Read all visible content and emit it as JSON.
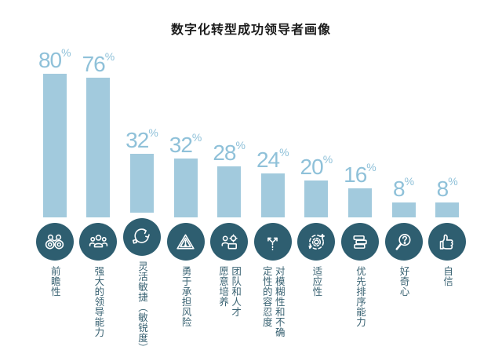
{
  "title": "数字化转型成功领导者画像",
  "colors": {
    "background": "#ffffff",
    "title_text": "#1c1c1c",
    "bar": "#a2cadd",
    "value_label": "#8fc1d9",
    "circle": "#2e5e70",
    "icon": "#ffffff",
    "category_label": "#3a6373"
  },
  "chart_data": {
    "type": "bar",
    "title": "数字化转型成功领导者画像",
    "unit": "%",
    "categories": [
      "前瞻性",
      "强大的领导能力",
      "灵活敏捷（敏锐度）",
      "勇于承担风险",
      "团队和人才\n愿意培养",
      "对模糊性和不确\n定性的容忍度",
      "适应性",
      "优先排序能力",
      "好奇心",
      "自信"
    ],
    "values": [
      80,
      76,
      32,
      32,
      28,
      24,
      20,
      16,
      8,
      8
    ],
    "icons": [
      "binoculars-icon",
      "team-leader-icon",
      "agile-cycle-icon",
      "warning-triangle-icon",
      "talent-development-icon",
      "branching-arrows-icon",
      "gear-adapt-icon",
      "priority-stack-icon",
      "magnifier-question-icon",
      "thumbs-up-icon"
    ],
    "xlabel": "",
    "ylabel": "",
    "ylim": [
      0,
      100
    ],
    "grid": false,
    "legend": false
  }
}
